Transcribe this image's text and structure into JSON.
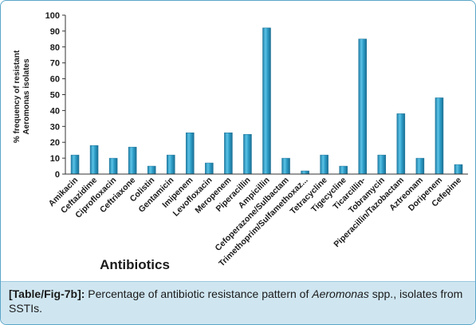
{
  "chart_data": {
    "type": "bar",
    "categories": [
      "Amikacin",
      "Ceftazidime",
      "Ciprofloxacin",
      "Ceftriaxone",
      "Colistin",
      "Gentamicin",
      "Imipenem",
      "Levofloxacin",
      "Meropenem",
      "Piperacillin",
      "Ampicillin",
      "Cefoperazone/Sulbactam",
      "Trimethoprim/Sulfamethoxaz...",
      "Tetracycline",
      "Tigecycline",
      "Ticarcillin-",
      "Tobramycin",
      "Piperacillin/Tazobactam",
      "Aztreonam",
      "Doripenem",
      "Cefepime"
    ],
    "values": [
      12,
      18,
      10,
      17,
      5,
      12,
      26,
      7,
      26,
      25,
      92,
      10,
      2,
      12,
      5,
      85,
      12,
      38,
      10,
      48,
      6
    ],
    "title": "",
    "xlabel": "Antibiotics",
    "ylabel_lines": [
      "% frequency of resistant",
      "Aeromonas isolates"
    ],
    "ylim": [
      0,
      100
    ],
    "yticks": [
      0,
      10,
      20,
      30,
      40,
      50,
      60,
      70,
      80,
      90,
      100
    ],
    "grid": false,
    "bar_color": "#2f9ec8"
  },
  "caption": {
    "label": "[Table/Fig-7b]:",
    "text_before": "Percentage of antibiotic resistance pattern of",
    "italic": "Aeromonas",
    "text_after": "spp., isolates from SSTIs."
  }
}
